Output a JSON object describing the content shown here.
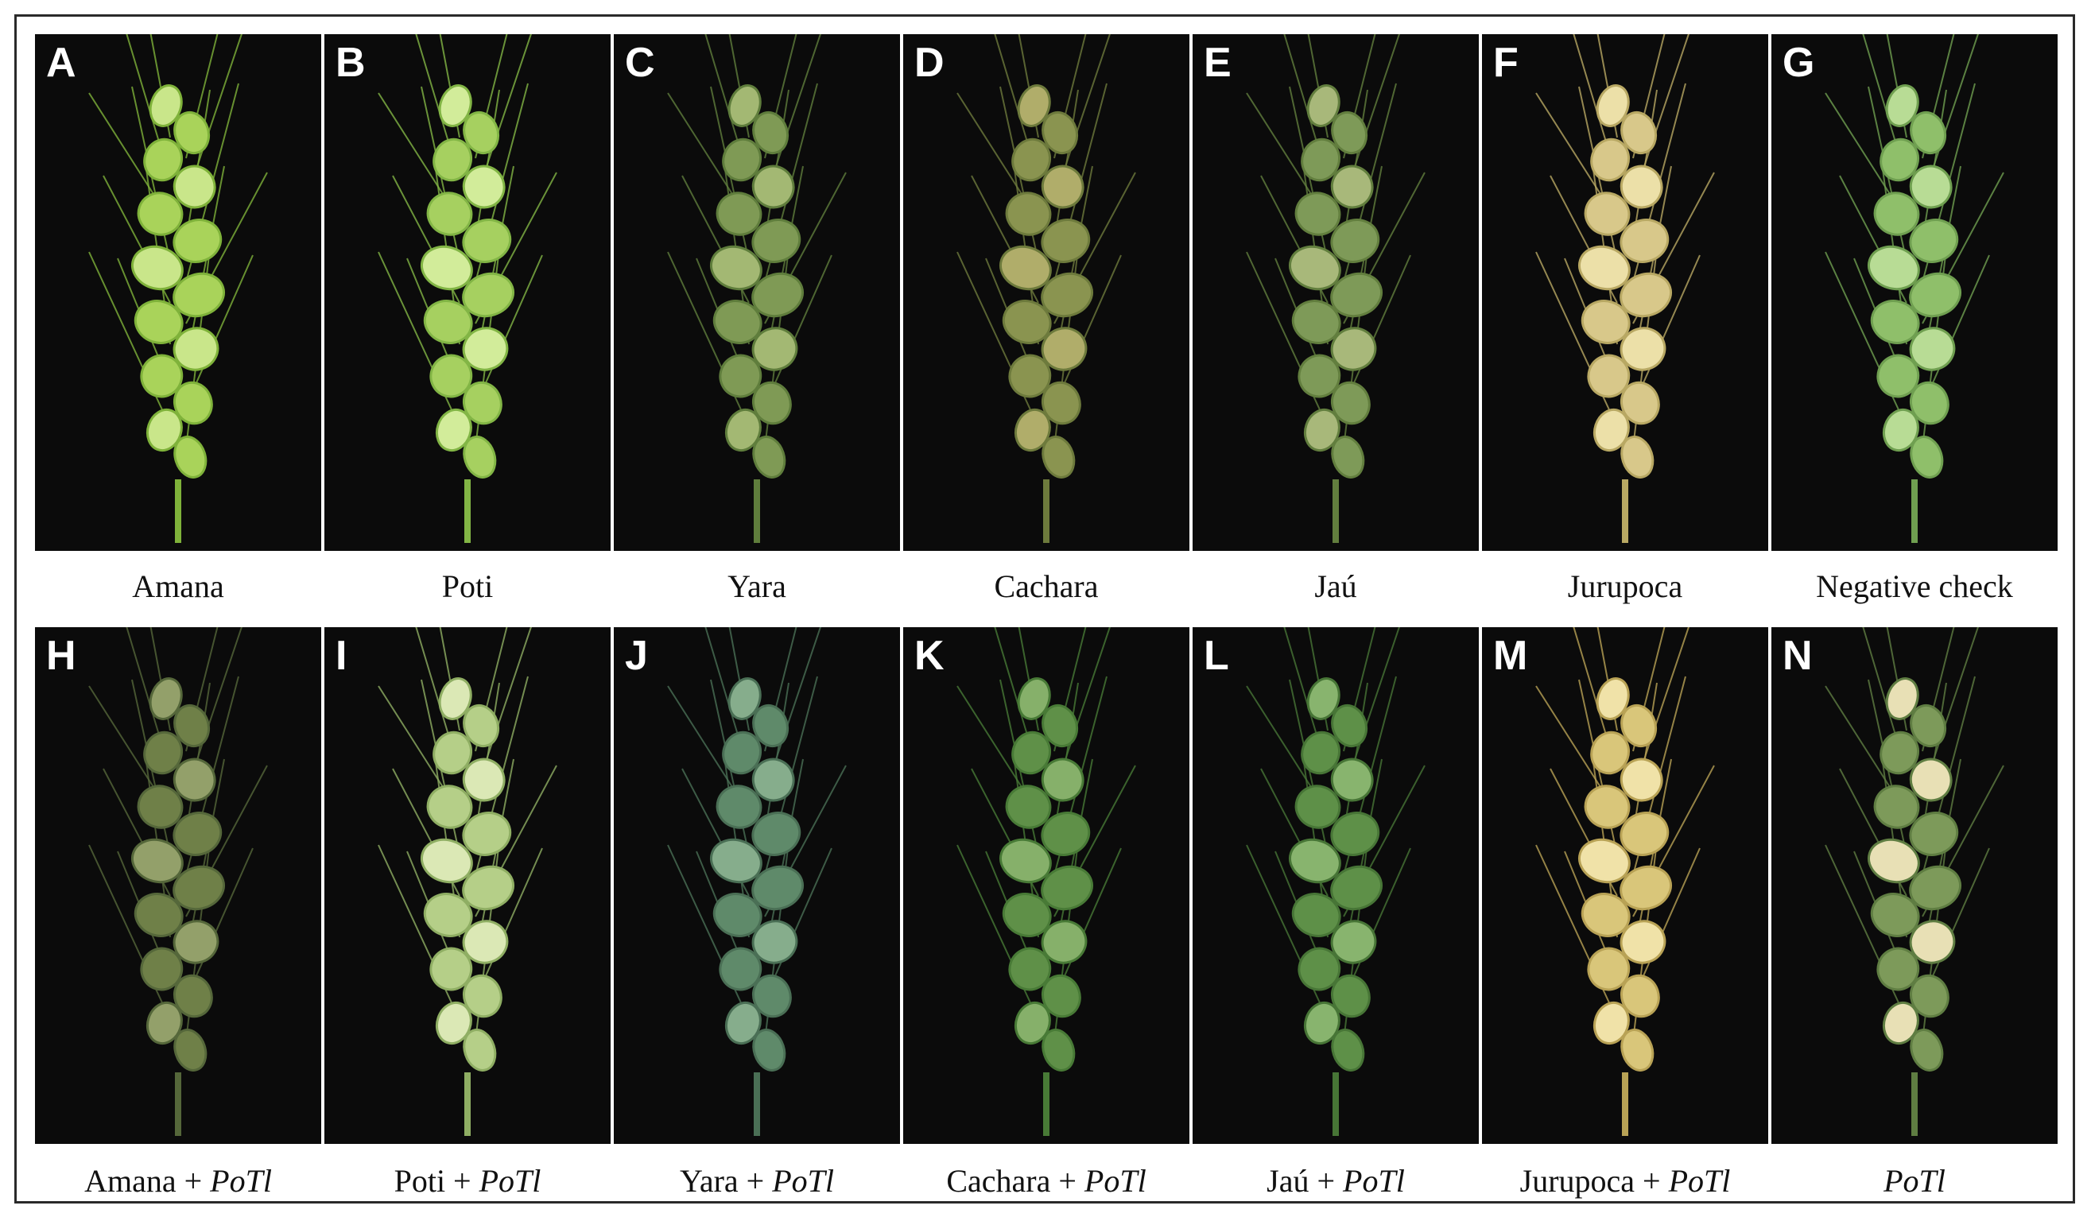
{
  "figure": {
    "panels_top": [
      {
        "letter": "A",
        "caption": "Amana"
      },
      {
        "letter": "B",
        "caption": "Poti"
      },
      {
        "letter": "C",
        "caption": "Yara"
      },
      {
        "letter": "D",
        "caption": "Cachara"
      },
      {
        "letter": "E",
        "caption": "Jaú"
      },
      {
        "letter": "F",
        "caption": "Jurupoca"
      },
      {
        "letter": "G",
        "caption": "Negative check"
      }
    ],
    "panels_bottom": [
      {
        "letter": "H",
        "caption_prefix": "Amana + ",
        "caption_italic": "PoTl"
      },
      {
        "letter": "I",
        "caption_prefix": "Poti + ",
        "caption_italic": "PoTl"
      },
      {
        "letter": "J",
        "caption_prefix": "Yara + ",
        "caption_italic": "PoTl"
      },
      {
        "letter": "K",
        "caption_prefix": "Cachara + ",
        "caption_italic": "PoTl"
      },
      {
        "letter": "L",
        "caption_prefix": "Jaú + ",
        "caption_italic": "PoTl"
      },
      {
        "letter": "M",
        "caption_prefix": "Jurupoca + ",
        "caption_italic": "PoTl"
      },
      {
        "letter": "N",
        "caption_prefix": "",
        "caption_italic": "PoTl"
      }
    ]
  },
  "colors": {
    "background": "#0b0b0b",
    "healthy_green": "#8fc24a",
    "dark_green": "#4f7a34",
    "blue_green": "#5f8a6a",
    "infected_straw": "#d9c98a",
    "olive": "#7d8a4a"
  }
}
